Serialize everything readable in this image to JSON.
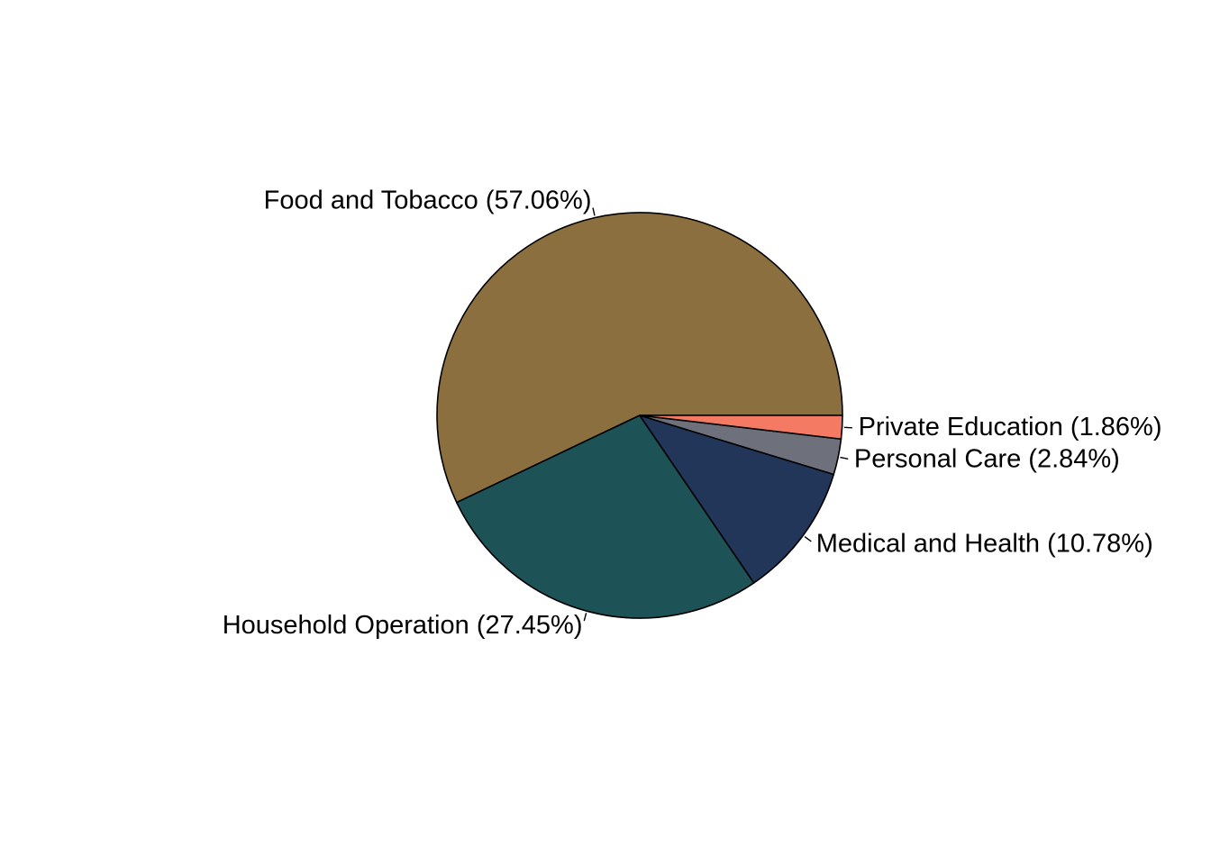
{
  "chart_data": {
    "type": "pie",
    "title": "",
    "start": "3 o'clock",
    "direction": "counter-clockwise",
    "slices": [
      {
        "name": "Food and Tobacco",
        "label": "Food and Tobacco (57.06%)",
        "value": 57.06,
        "color": "#8B6F3E"
      },
      {
        "name": "Household Operation",
        "label": "Household Operation (27.45%)",
        "value": 27.45,
        "color": "#1D5256"
      },
      {
        "name": "Medical and Health",
        "label": "Medical and Health (10.78%)",
        "value": 10.78,
        "color": "#22365A"
      },
      {
        "name": "Personal Care",
        "label": "Personal Care (2.84%)",
        "value": 2.84,
        "color": "#6E717B"
      },
      {
        "name": "Private Education",
        "label": "Private Education (1.86%)",
        "value": 1.86,
        "color": "#F47A64"
      }
    ]
  }
}
